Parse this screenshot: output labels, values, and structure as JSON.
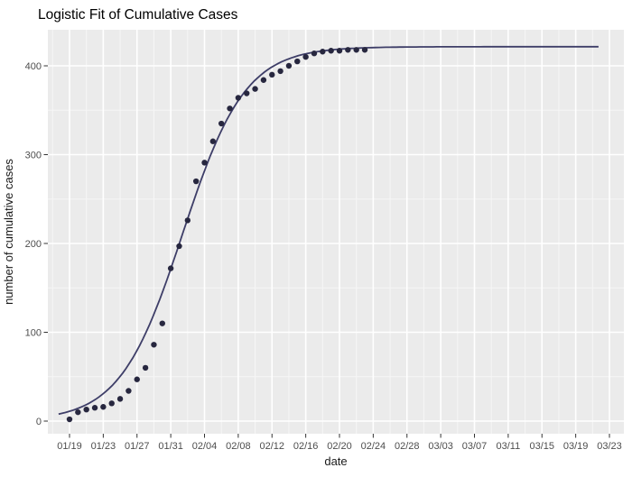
{
  "chart_data": {
    "type": "scatter",
    "title": "Logistic Fit of Cumulative Cases",
    "xlabel": "date",
    "ylabel": "number of cumulative cases",
    "x_tick_labels": [
      "01/19",
      "01/23",
      "01/27",
      "01/31",
      "02/04",
      "02/08",
      "02/12",
      "02/16",
      "02/20",
      "02/24",
      "02/28",
      "03/03",
      "03/07",
      "03/11",
      "03/15",
      "03/19",
      "03/23"
    ],
    "x_tick_interval_days": 4,
    "y_ticks": [
      0,
      100,
      200,
      300,
      400
    ],
    "y_tick_labels": [
      "0",
      "100",
      "200",
      "300",
      "400"
    ],
    "ylim": [
      -14,
      441
    ],
    "grid": "on",
    "legend": "none",
    "points": {
      "dates": [
        "01/19",
        "01/20",
        "01/21",
        "01/22",
        "01/23",
        "01/24",
        "01/25",
        "01/26",
        "01/27",
        "01/28",
        "01/29",
        "01/30",
        "01/31",
        "02/01",
        "02/02",
        "02/03",
        "02/04",
        "02/05",
        "02/06",
        "02/07",
        "02/08",
        "02/09",
        "02/10",
        "02/11",
        "02/12",
        "02/13",
        "02/14",
        "02/15",
        "02/16",
        "02/17",
        "02/18",
        "02/19",
        "02/20",
        "02/21",
        "02/22",
        "02/23"
      ],
      "values": [
        2,
        10,
        13,
        15,
        16,
        20,
        25,
        34,
        47,
        60,
        86,
        110,
        172,
        197,
        226,
        270,
        291,
        315,
        335,
        352,
        364,
        369,
        374,
        384,
        390,
        394,
        400,
        405,
        410,
        414,
        416,
        417,
        417,
        418,
        418,
        418
      ]
    },
    "fit": {
      "model": "logistic",
      "asymptote_K": 421.5,
      "growth_rate_r": 0.27,
      "midpoint_day": 13.4,
      "line_start_day": -1.3,
      "line_end_day": 62.7
    },
    "colors": {
      "panel_bg": "#ebebeb",
      "grid_major": "#ffffff",
      "grid_minor": "#f6f6f6",
      "point": "#27273f",
      "line": "#3e3e68",
      "tick_text": "#4d4d4d",
      "axis_title_text": "#1a1a1a",
      "title_text": "#000000",
      "tick_mark": "#333333"
    }
  }
}
